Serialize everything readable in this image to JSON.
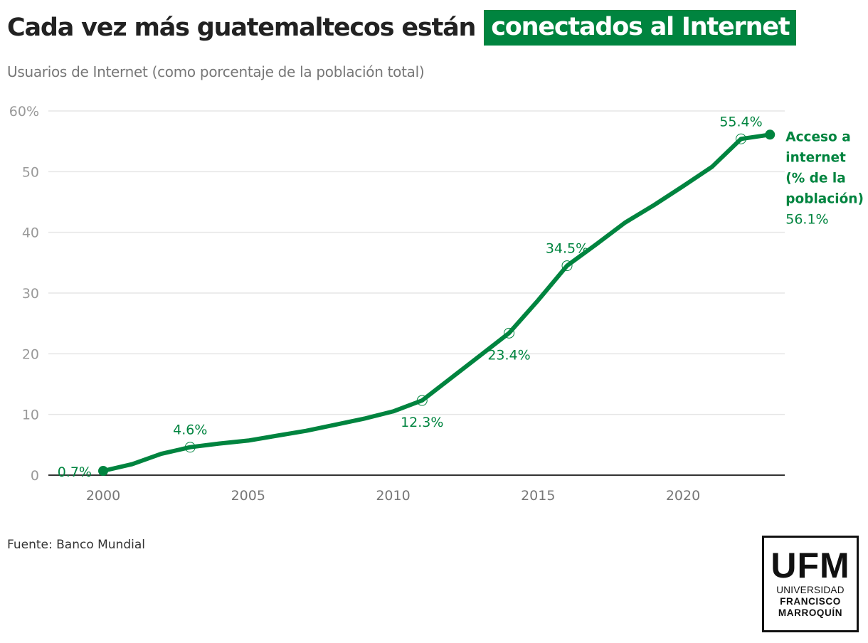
{
  "header": {
    "title_main": "Cada vez más guatemaltecos están",
    "title_highlight": "conectados al Internet",
    "subtitle": "Usuarios de Internet (como porcentaje de la población total)"
  },
  "colors": {
    "accent": "#00843f",
    "title": "#222222",
    "subtitle": "#777777",
    "grid": "#e6e6e6",
    "axis": "#333333",
    "tick_label": "#999999",
    "x_tick_label": "#777777"
  },
  "chart_data": {
    "type": "line",
    "title": "Cada vez más guatemaltecos están conectados al Internet",
    "subtitle": "Usuarios de Internet (como porcentaje de la población total)",
    "xlabel": "",
    "ylabel": "",
    "xlim": [
      1998,
      2023
    ],
    "ylim": [
      0,
      60
    ],
    "grid": true,
    "x_ticks": [
      2000,
      2005,
      2010,
      2015,
      2020
    ],
    "x_tick_labels": [
      "2000",
      "2005",
      "2010",
      "2015",
      "2020"
    ],
    "y_ticks": [
      0,
      10,
      20,
      30,
      40,
      50,
      60
    ],
    "y_tick_labels": [
      "0",
      "10",
      "20",
      "30",
      "40",
      "50",
      "60%"
    ],
    "series": [
      {
        "name": "Acceso a internet (% de la población)",
        "label_lines": [
          "Acceso a",
          "internet",
          "(% de la",
          "población)"
        ],
        "last_value_label": "56.1%",
        "x": [
          2000,
          2001,
          2002,
          2003,
          2004,
          2005,
          2006,
          2007,
          2008,
          2009,
          2010,
          2011,
          2012,
          2013,
          2014,
          2015,
          2016,
          2017,
          2018,
          2019,
          2020,
          2021,
          2022,
          2023
        ],
        "values": [
          0.7,
          1.8,
          3.5,
          4.6,
          5.2,
          5.7,
          6.5,
          7.3,
          8.3,
          9.3,
          10.5,
          12.3,
          16.0,
          19.7,
          23.4,
          28.8,
          34.5,
          38.0,
          41.6,
          44.5,
          47.6,
          50.8,
          55.4,
          56.1
        ]
      }
    ],
    "annotations": [
      {
        "x": 2000,
        "y": 0.7,
        "text": "0.7%",
        "position": "left",
        "marker": "filled"
      },
      {
        "x": 2003,
        "y": 4.6,
        "text": "4.6%",
        "position": "above",
        "marker": "hollow"
      },
      {
        "x": 2011,
        "y": 12.3,
        "text": "12.3%",
        "position": "below",
        "marker": "hollow"
      },
      {
        "x": 2014,
        "y": 23.4,
        "text": "23.4%",
        "position": "below",
        "marker": "hollow"
      },
      {
        "x": 2016,
        "y": 34.5,
        "text": "34.5%",
        "position": "above",
        "marker": "hollow"
      },
      {
        "x": 2022,
        "y": 55.4,
        "text": "55.4%",
        "position": "above",
        "marker": "hollow"
      },
      {
        "x": 2023,
        "y": 56.1,
        "text": "",
        "position": "right",
        "marker": "filled"
      }
    ]
  },
  "footer": {
    "source": "Fuente: Banco Mundial",
    "logo": {
      "acronym": "UFM",
      "line1": "UNIVERSIDAD",
      "line2": "FRANCISCO",
      "line3": "MARROQUÍN"
    }
  }
}
